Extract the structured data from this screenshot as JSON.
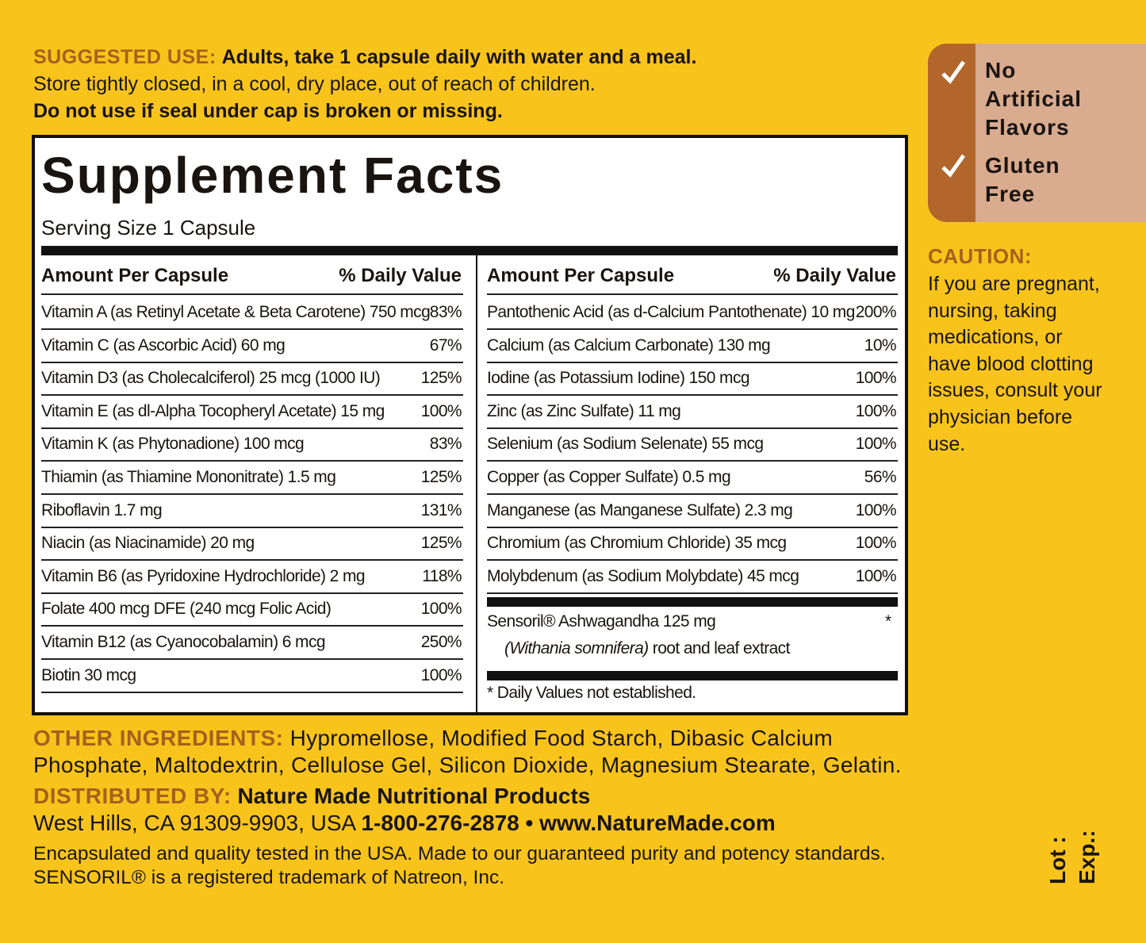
{
  "suggested_use": {
    "label": "SUGGESTED USE:",
    "text": "Adults, take 1 capsule daily with water and a meal.",
    "storage": "Store tightly closed, in a cool, dry place, out of reach of children.",
    "warning": "Do not use if seal under cap is broken or missing."
  },
  "facts": {
    "title": "Supplement Facts",
    "serving": "Serving Size 1 Capsule",
    "header": {
      "amount": "Amount Per Capsule",
      "dv": "% Daily Value"
    },
    "left": [
      [
        "Vitamin A (as Retinyl Acetate & Beta Carotene) 750 mcg",
        "83%"
      ],
      [
        "Vitamin C (as Ascorbic Acid) 60 mg",
        "67%"
      ],
      [
        "Vitamin D3 (as Cholecalciferol) 25 mcg (1000 IU)",
        "125%"
      ],
      [
        "Vitamin E (as dl-Alpha Tocopheryl Acetate) 15 mg",
        "100%"
      ],
      [
        "Vitamin K (as Phytonadione) 100 mcg",
        "83%"
      ],
      [
        "Thiamin (as Thiamine Mononitrate) 1.5 mg",
        "125%"
      ],
      [
        "Riboflavin 1.7 mg",
        "131%"
      ],
      [
        "Niacin (as Niacinamide) 20 mg",
        "125%"
      ],
      [
        "Vitamin B6 (as Pyridoxine Hydrochloride) 2 mg",
        "118%"
      ],
      [
        "Folate 400 mcg DFE (240 mcg Folic Acid)",
        "100%"
      ],
      [
        "Vitamin B12 (as Cyanocobalamin) 6 mcg",
        "250%"
      ],
      [
        "Biotin 30 mcg",
        "100%"
      ]
    ],
    "right": [
      [
        "Pantothenic Acid (as d-Calcium Pantothenate) 10 mg",
        "200%"
      ],
      [
        "Calcium (as Calcium Carbonate) 130 mg",
        "10%"
      ],
      [
        "Iodine (as Potassium Iodine) 150 mcg",
        "100%"
      ],
      [
        "Zinc (as Zinc Sulfate) 11 mg",
        "100%"
      ],
      [
        "Selenium (as Sodium Selenate) 55 mcg",
        "100%"
      ],
      [
        "Copper (as Copper Sulfate) 0.5 mg",
        "56%"
      ],
      [
        "Manganese (as Manganese Sulfate) 2.3 mg",
        "100%"
      ],
      [
        "Chromium (as Chromium Chloride) 35 mcg",
        "100%"
      ],
      [
        "Molybdenum (as Sodium Molybdate) 45 mcg",
        "100%"
      ]
    ],
    "ashwagandha": {
      "name": "Sensoril® Ashwagandha 125 mg",
      "latin": "(Withania somnifera)",
      "extract": "root and leaf extract",
      "dv": "*"
    },
    "footnote": "* Daily Values not established."
  },
  "badges": [
    "No Artificial Flavors",
    "Gluten Free"
  ],
  "caution": {
    "label": "CAUTION:",
    "text": "If you are pregnant, nursing, taking medications, or have blood clotting issues, consult your physician before use."
  },
  "other_ingredients": {
    "label": "OTHER INGREDIENTS:",
    "text": "Hypromellose, Modified Food Starch, Dibasic Calcium Phosphate, Maltodextrin, Cellulose Gel, Silicon Dioxide, Magnesium Stearate, Gelatin."
  },
  "distributor": {
    "label": "DISTRIBUTED BY:",
    "name": "Nature Made Nutritional Products",
    "address": "West Hills, CA 91309-9903, USA",
    "contact": "1-800-276-2878 • www.NatureMade.com"
  },
  "footer": [
    "Encapsulated and quality tested in the USA. Made to our guaranteed purity and potency standards.",
    "SENSORIL® is a registered trademark of Natreon, Inc."
  ],
  "lot": "Lot :",
  "exp": "Exp.:"
}
